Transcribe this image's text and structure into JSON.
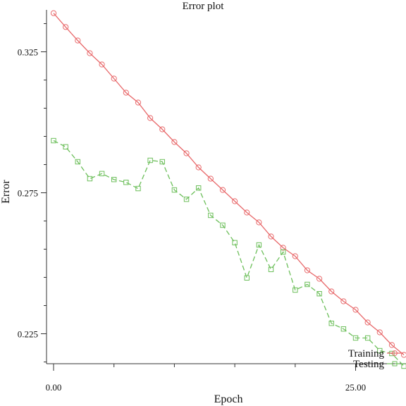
{
  "chart_data": {
    "type": "line",
    "title": "Error plot",
    "xlabel": "Epoch",
    "ylabel": "Error",
    "xlim": [
      0,
      29
    ],
    "ylim": [
      0.215,
      0.339
    ],
    "x_ticks": [
      0,
      25
    ],
    "x_tick_labels": [
      "0.00",
      "25.00"
    ],
    "y_ticks": [
      0.225,
      0.275,
      0.325
    ],
    "y_tick_labels": [
      "0.225",
      "0.275",
      "0.325"
    ],
    "grid": false,
    "legend_position": "bottom-right",
    "series": [
      {
        "name": "Training",
        "color": "#e8696b",
        "line_style": "solid",
        "marker": "circle",
        "x": [
          0,
          1,
          2,
          3,
          4,
          5,
          6,
          7,
          8,
          9,
          10,
          11,
          12,
          13,
          14,
          15,
          16,
          17,
          18,
          19,
          20,
          21,
          22,
          23,
          24,
          25,
          26,
          27,
          28,
          29
        ],
        "y": [
          0.3387,
          0.3338,
          0.329,
          0.3245,
          0.3205,
          0.3155,
          0.3105,
          0.307,
          0.3015,
          0.2975,
          0.293,
          0.289,
          0.284,
          0.28,
          0.276,
          0.272,
          0.268,
          0.2645,
          0.2595,
          0.2555,
          0.2525,
          0.2475,
          0.2445,
          0.24,
          0.2365,
          0.2335,
          0.229,
          0.2255,
          0.221,
          0.2175
        ]
      },
      {
        "name": "Testing",
        "color": "#6dbf5b",
        "line_style": "dashed",
        "marker": "square",
        "x": [
          0,
          1,
          2,
          3,
          4,
          5,
          6,
          7,
          8,
          9,
          10,
          11,
          12,
          13,
          14,
          15,
          16,
          17,
          18,
          19,
          20,
          21,
          22,
          23,
          24,
          25,
          26,
          27,
          28,
          29
        ],
        "y": [
          0.2935,
          0.2913,
          0.286,
          0.28,
          0.2818,
          0.2797,
          0.2787,
          0.2765,
          0.2865,
          0.286,
          0.276,
          0.2727,
          0.2767,
          0.267,
          0.2635,
          0.2573,
          0.2448,
          0.2565,
          0.2478,
          0.254,
          0.2405,
          0.2425,
          0.2392,
          0.2287,
          0.2267,
          0.2235,
          0.2235,
          0.219,
          0.218,
          0.2135
        ]
      }
    ]
  }
}
